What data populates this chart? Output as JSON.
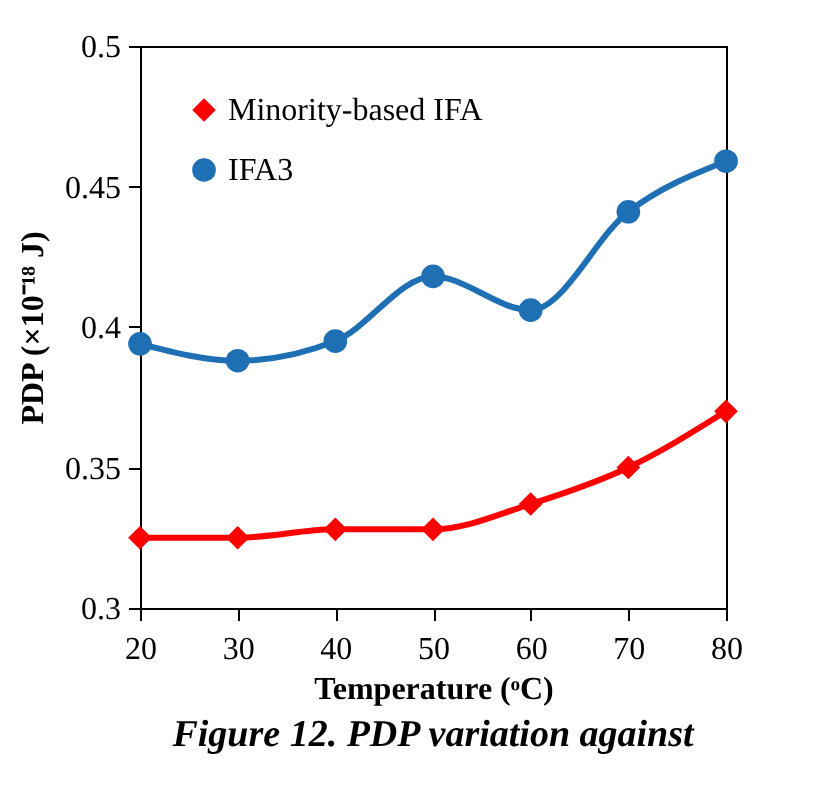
{
  "chart_data": {
    "type": "line",
    "xlabel": "Temperature (ᵒC)",
    "ylabel": "PDP (×10⁻¹⁸ J)",
    "x": [
      20,
      30,
      40,
      50,
      60,
      70,
      80
    ],
    "series": [
      {
        "name": "Minority-based IFA",
        "color": "#ff0000",
        "marker": "diamond",
        "values": [
          0.325,
          0.325,
          0.328,
          0.328,
          0.337,
          0.35,
          0.37
        ]
      },
      {
        "name": "IFA3",
        "color": "#1f6fb5",
        "marker": "circle",
        "values": [
          0.394,
          0.388,
          0.395,
          0.418,
          0.406,
          0.441,
          0.459
        ]
      }
    ],
    "xlim": [
      20,
      80
    ],
    "xticks": [
      20,
      30,
      40,
      50,
      60,
      70,
      80
    ],
    "ylim": [
      0.3,
      0.5
    ],
    "yticks": [
      0.3,
      0.35,
      0.4,
      0.45,
      0.5
    ],
    "grid": false,
    "legend": "top left",
    "line_style": "solid",
    "annotations": [
      "Figure 12. PDP variation against"
    ]
  }
}
